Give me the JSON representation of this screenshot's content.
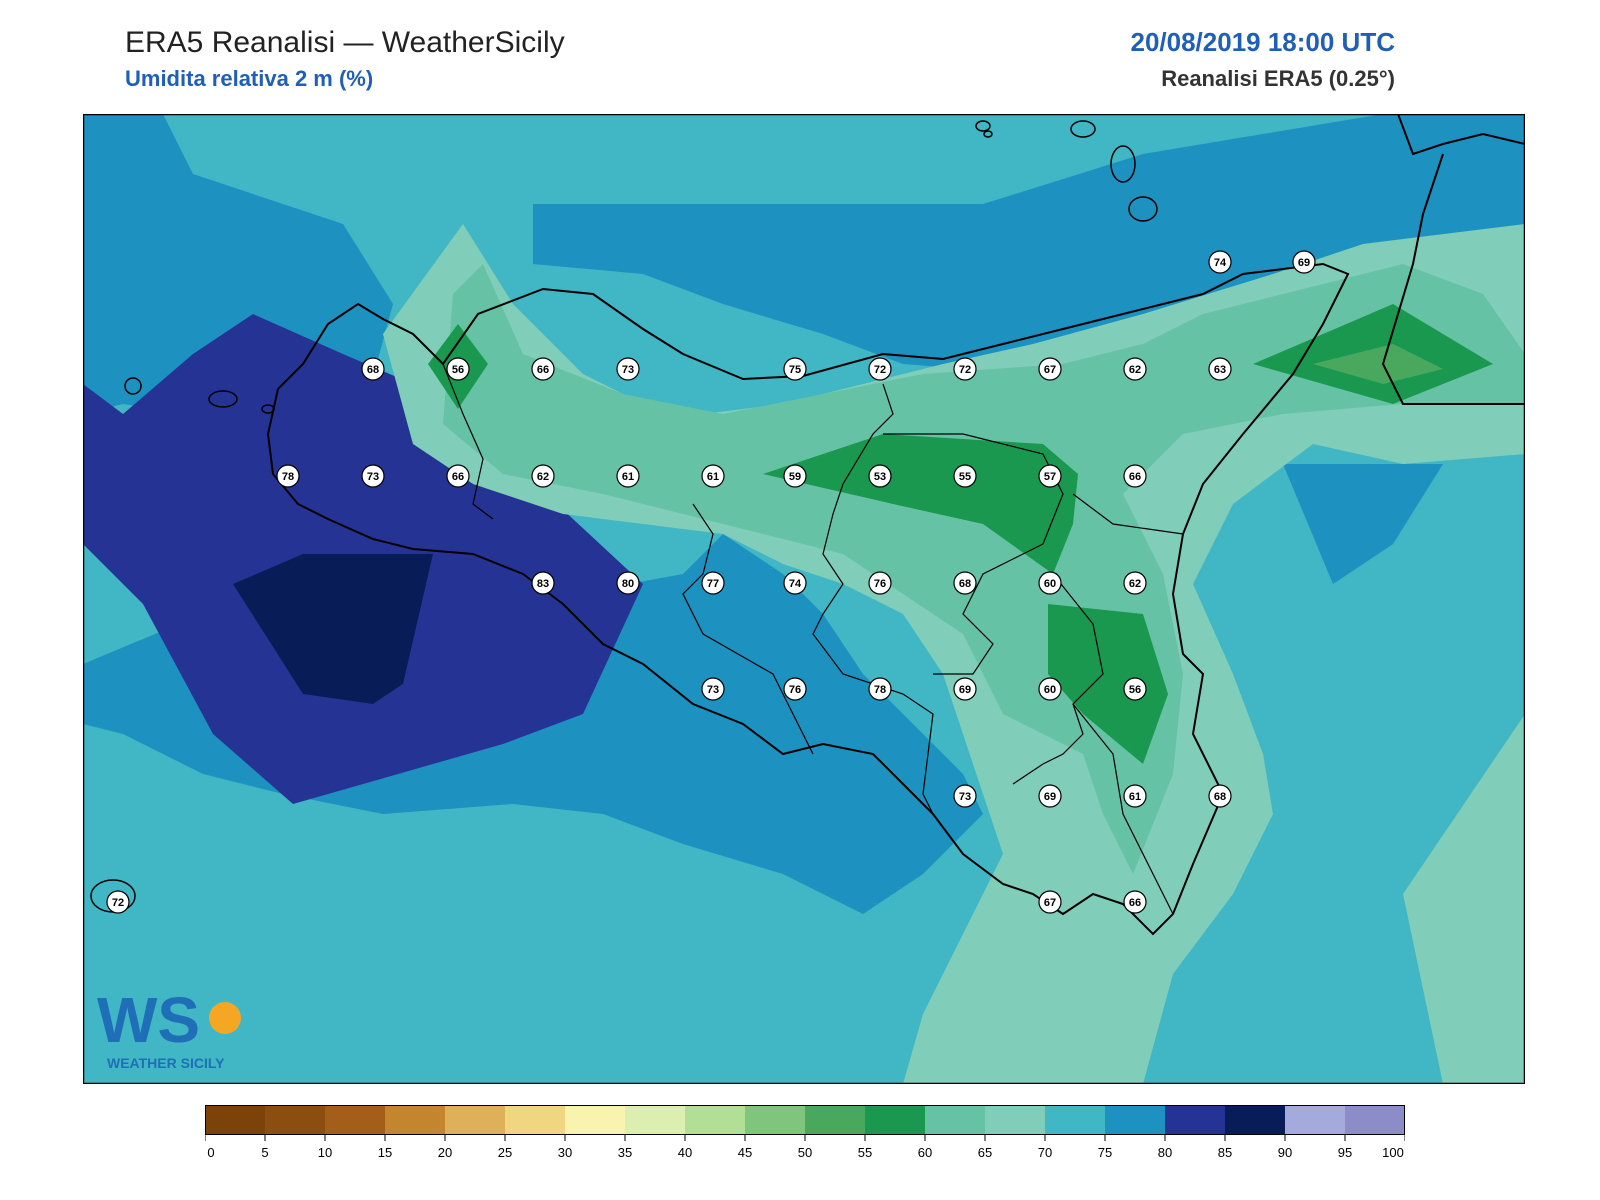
{
  "header": {
    "title": "ERA5 Reanalisi — WeatherSicily",
    "subtitle": "Umidita relativa 2 m (%)",
    "datetime": "20/08/2019 18:00 UTC",
    "source": "Reanalisi ERA5 (0.25°)"
  },
  "logo": {
    "text": "WEATHER SICILY",
    "letters": "WS"
  },
  "colorbar": {
    "ticks": [
      "0",
      "5",
      "10",
      "15",
      "20",
      "25",
      "30",
      "35",
      "40",
      "45",
      "50",
      "55",
      "60",
      "65",
      "70",
      "75",
      "80",
      "85",
      "90",
      "95",
      "100"
    ],
    "colors": [
      "#7b4309",
      "#8b4e10",
      "#a35f1a",
      "#c4852f",
      "#dfb05a",
      "#f0d680",
      "#f8f4b0",
      "#dcefb0",
      "#b1df95",
      "#80c57c",
      "#4aa85e",
      "#1a9850",
      "#66c2a4",
      "#80ceb9",
      "#41b6c4",
      "#1d91c0",
      "#253494",
      "#081d58",
      "#a4abdc",
      "#8c8cc8"
    ]
  },
  "station_values": [
    "68",
    "56",
    "66",
    "73",
    "75",
    "72",
    "72",
    "67",
    "62",
    "63",
    "78",
    "73",
    "66",
    "62",
    "61",
    "61",
    "59",
    "53",
    "55",
    "57",
    "66",
    "83",
    "80",
    "77",
    "74",
    "76",
    "68",
    "60",
    "62",
    "73",
    "76",
    "78",
    "69",
    "60",
    "56",
    "73",
    "69",
    "61",
    "68",
    "67",
    "66",
    "74",
    "69",
    "72"
  ],
  "colors": {
    "header_blue": "#1f5fb8",
    "coast": "#000000"
  }
}
